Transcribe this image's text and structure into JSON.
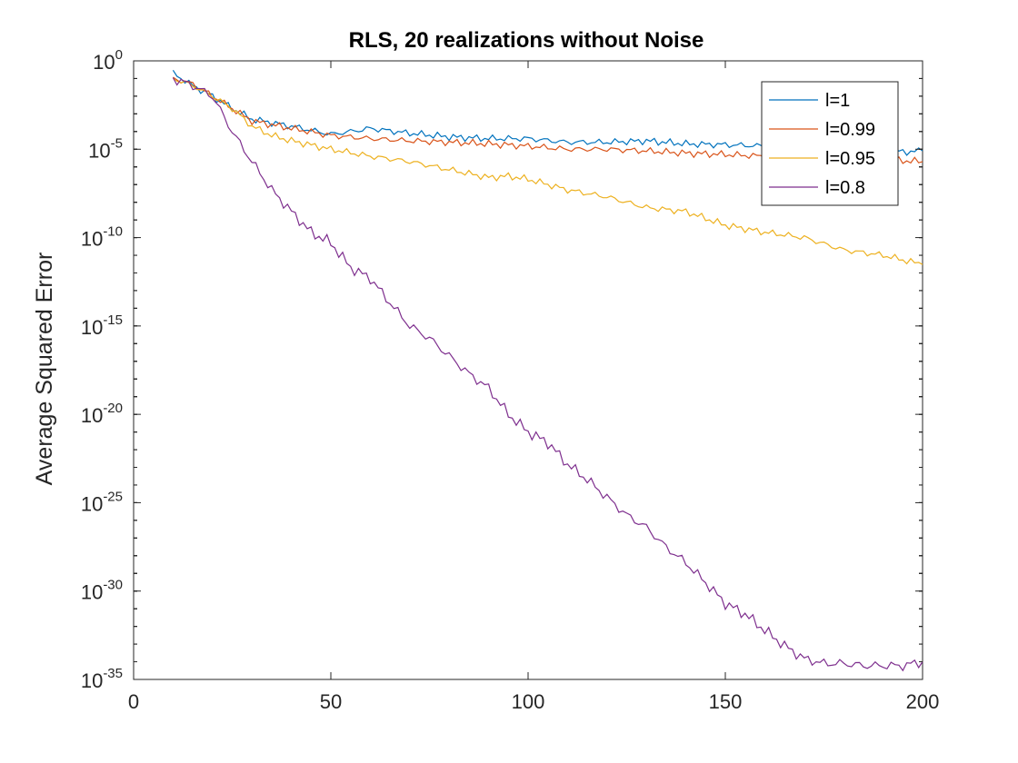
{
  "chart_data": {
    "type": "line",
    "title": "RLS, 20 realizations without Noise",
    "xlabel": "",
    "ylabel": "Average Squared Error",
    "xlim": [
      0,
      200
    ],
    "ylim": [
      1e-35,
      1
    ],
    "yscale": "log",
    "grid": false,
    "legend_position": "top-right",
    "x_ticks": [
      0,
      50,
      100,
      150,
      200
    ],
    "x_tick_labels": [
      "0",
      "50",
      "100",
      "150",
      "200"
    ],
    "y_ticks": [
      {
        "base": "10",
        "exp": "0"
      },
      {
        "base": "10",
        "exp": "-5"
      },
      {
        "base": "10",
        "exp": "-10"
      },
      {
        "base": "10",
        "exp": "-15"
      },
      {
        "base": "10",
        "exp": "-20"
      },
      {
        "base": "10",
        "exp": "-25"
      },
      {
        "base": "10",
        "exp": "-30"
      },
      {
        "base": "10",
        "exp": "-35"
      }
    ],
    "series": [
      {
        "name": "l=1",
        "color": "#0072BD",
        "x": [
          10,
          15,
          20,
          25,
          30,
          40,
          50,
          55,
          60,
          70,
          80,
          90,
          100,
          110,
          120,
          130,
          140,
          150,
          160,
          170,
          180,
          190,
          195,
          200
        ],
        "y": [
          0.2,
          0.04,
          0.01,
          0.002,
          0.0005,
          0.0002,
          7e-05,
          0.0001,
          0.00015,
          8e-05,
          5e-05,
          4e-05,
          4e-05,
          2.5e-05,
          2.5e-05,
          3e-05,
          2e-05,
          1.8e-05,
          1.5e-05,
          1.8e-05,
          1.2e-05,
          1.2e-05,
          7e-06,
          8e-06
        ]
      },
      {
        "name": "l=0.99",
        "color": "#D95319",
        "x": [
          10,
          15,
          20,
          25,
          30,
          40,
          50,
          60,
          70,
          80,
          90,
          100,
          110,
          120,
          130,
          140,
          150,
          160,
          170,
          180,
          190,
          200
        ],
        "y": [
          0.1,
          0.05,
          0.01,
          0.002,
          0.0004,
          0.00015,
          6e-05,
          4e-05,
          3e-05,
          2.5e-05,
          2e-05,
          1.5e-05,
          1e-05,
          1e-05,
          8e-06,
          6e-06,
          5e-06,
          4e-06,
          3e-06,
          3e-06,
          2.5e-06,
          2e-06
        ]
      },
      {
        "name": "l=0.95",
        "color": "#EDB120",
        "x": [
          10,
          15,
          20,
          25,
          30,
          35,
          40,
          50,
          60,
          70,
          80,
          90,
          95,
          100,
          110,
          120,
          130,
          140,
          150,
          160,
          170,
          180,
          190,
          200
        ],
        "y": [
          0.1,
          0.04,
          0.01,
          0.002,
          0.0002,
          6e-05,
          3e-05,
          1e-05,
          4e-06,
          2e-06,
          7e-07,
          2.5e-07,
          3e-07,
          2e-07,
          5e-08,
          2e-08,
          5e-09,
          3e-09,
          5e-10,
          2e-10,
          1e-10,
          2e-11,
          1e-11,
          3e-12
        ]
      },
      {
        "name": "l=0.8",
        "color": "#7E2F8E",
        "x": [
          10,
          15,
          20,
          25,
          30,
          35,
          40,
          45,
          50,
          55,
          60,
          65,
          70,
          75,
          80,
          85,
          90,
          95,
          100,
          105,
          110,
          115,
          120,
          125,
          130,
          135,
          140,
          145,
          150,
          155,
          160,
          165,
          170,
          175,
          180,
          185,
          190,
          195,
          200
        ],
        "y": [
          0.1,
          0.04,
          0.01,
          0.0001,
          2e-06,
          5e-08,
          3e-09,
          2e-10,
          5e-11,
          2e-12,
          5e-13,
          2e-14,
          1e-15,
          2e-16,
          2e-17,
          2e-18,
          3e-19,
          1e-20,
          1e-21,
          2.5e-22,
          1.5e-23,
          2e-24,
          2e-25,
          2e-26,
          4e-27,
          3e-28,
          4e-29,
          3e-30,
          2e-31,
          5e-32,
          6e-33,
          8e-34,
          1.5e-34,
          8e-35,
          8e-35,
          6e-35,
          6e-35,
          6e-35,
          1e-34
        ]
      }
    ]
  }
}
